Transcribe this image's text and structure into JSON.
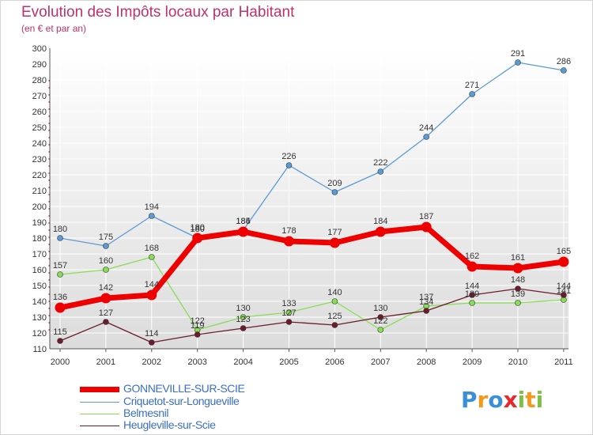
{
  "title": "Evolution des Impôts locaux par Habitant",
  "subtitle": "(en € et par an)",
  "chart_data": {
    "type": "line",
    "title": "Evolution des Impôts locaux par Habitant",
    "ylabel": "(en € et par an)",
    "xlabel": "",
    "x": [
      "2000",
      "2001",
      "2002",
      "2003",
      "2004",
      "2005",
      "2006",
      "2007",
      "2008",
      "2009",
      "2010",
      "2011"
    ],
    "yticks": [
      "110",
      "120",
      "130",
      "140",
      "150",
      "160",
      "170",
      "180",
      "190",
      "200",
      "210",
      "220",
      "230",
      "240",
      "250",
      "260",
      "270",
      "280",
      "290",
      "300"
    ],
    "ylim": [
      110,
      300
    ],
    "grid": true,
    "series": [
      {
        "name": "Criquetot-sur-Longueville",
        "color": "#5b9bd5",
        "values": [
          180,
          175,
          194,
          180,
          185,
          226,
          209,
          222,
          244,
          271,
          291,
          286
        ],
        "labels": [
          "180",
          "175",
          "194",
          "180",
          "185",
          "226",
          "209",
          "222",
          "244",
          "271",
          "291",
          "286"
        ]
      },
      {
        "name": "Belmesnil",
        "color": "#88dd55",
        "values": [
          157,
          160,
          168,
          122,
          130,
          133,
          140,
          122,
          137,
          139,
          139,
          141
        ],
        "labels": [
          "157",
          "160",
          "168",
          "122",
          "130",
          "133",
          "140",
          "122",
          "137",
          "139",
          "139",
          "141"
        ]
      },
      {
        "name": "Heugleville-sur-Scie",
        "color": "#6b1c2a",
        "values": [
          115,
          127,
          114,
          119,
          123,
          127,
          125,
          130,
          134,
          144,
          148,
          144
        ],
        "labels": [
          "115",
          "127",
          "114",
          "119",
          "123",
          "127",
          "125",
          "130",
          "134",
          "144",
          "148",
          "144"
        ]
      },
      {
        "name": "GONNEVILLE-SUR-SCIE",
        "color": "#ee0000",
        "values": [
          136,
          142,
          144,
          180,
          184,
          178,
          177,
          184,
          187,
          162,
          161,
          165
        ],
        "labels": [
          "136",
          "142",
          "144",
          "180",
          "184",
          "178",
          "177",
          "184",
          "187",
          "162",
          "161",
          "165"
        ]
      }
    ],
    "legend": [
      "GONNEVILLE-SUR-SCIE",
      "Criquetot-sur-Longueville",
      "Belmesnil",
      "Heugleville-sur-Scie"
    ],
    "legend_position": "bottom-left"
  },
  "logo": {
    "text": "Proxiti",
    "letters": [
      "P",
      "r",
      "o",
      "x",
      "i",
      "t",
      "i"
    ]
  }
}
